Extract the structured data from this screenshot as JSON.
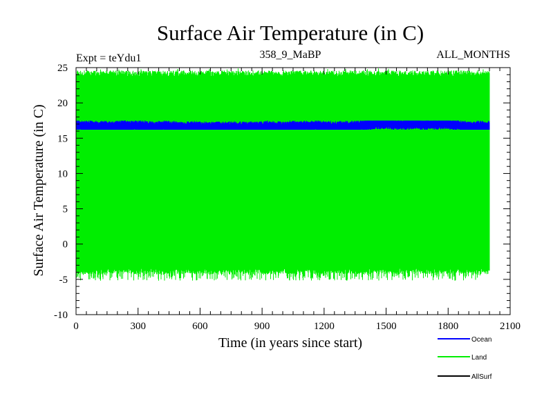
{
  "chart_data": {
    "type": "line",
    "title": "Surface Air Temperature (in C)",
    "subtitle_left": "Expt = teYdu1",
    "subtitle_center": "358_9_MaBP",
    "subtitle_right": "ALL_MONTHS",
    "xlabel": "Time (in years since start)",
    "ylabel": "Surface Air Temperature (in C)",
    "xlim": [
      0,
      2100
    ],
    "ylim": [
      -10,
      25
    ],
    "xticks": [
      0,
      300,
      600,
      900,
      1200,
      1500,
      1800,
      2100
    ],
    "yticks": [
      -10,
      -5,
      0,
      5,
      10,
      15,
      20,
      25
    ],
    "series": [
      {
        "name": "Land",
        "color": "#00ee00",
        "x_range": [
          0,
          2000
        ],
        "min_envelope": [
          -5.2,
          -3.5
        ],
        "max_envelope": [
          23.8,
          24.6
        ],
        "seasonal_cycle": true
      },
      {
        "name": "Ocean",
        "color": "#0000ff",
        "x_range": [
          0,
          2000
        ],
        "band": [
          16.2,
          17.5
        ],
        "mean": 16.8
      },
      {
        "name": "AllSurf",
        "color": "#000000",
        "x_range": [
          0,
          2000
        ],
        "note": "hidden behind Land"
      }
    ],
    "legend": [
      {
        "label": "Ocean",
        "color": "#0000ff"
      },
      {
        "label": "Land",
        "color": "#00ee00"
      },
      {
        "label": "AllSurf",
        "color": "#000000"
      }
    ]
  }
}
